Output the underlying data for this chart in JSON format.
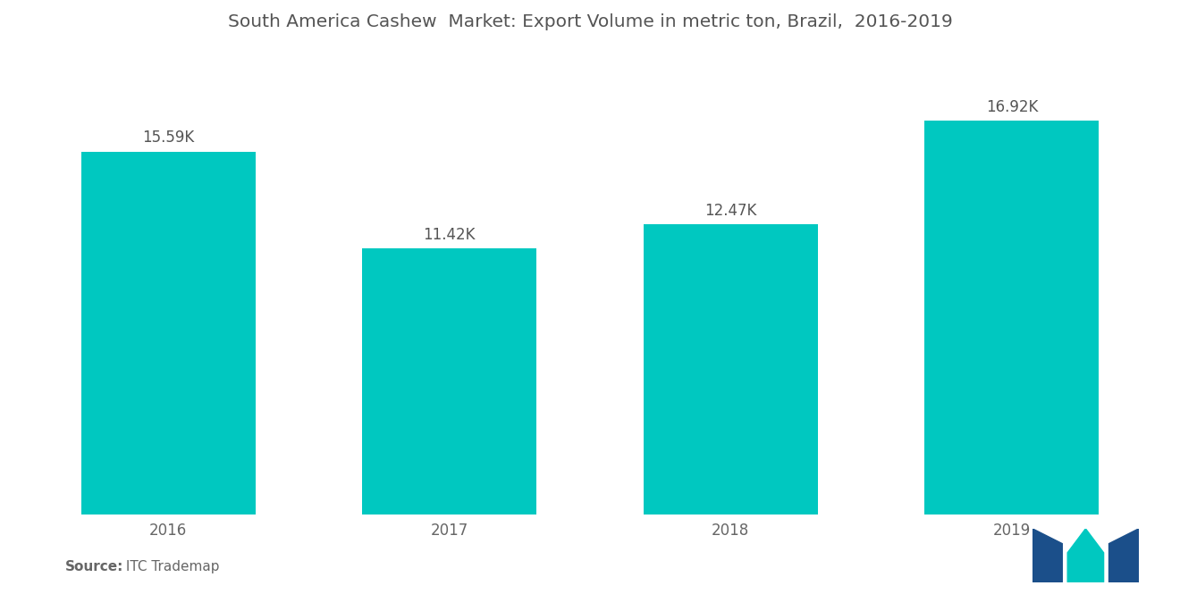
{
  "title": "South America Cashew  Market: Export Volume in metric ton, Brazil,  2016-2019",
  "categories": [
    "2016",
    "2017",
    "2018",
    "2019"
  ],
  "values": [
    15590,
    11420,
    12470,
    16920
  ],
  "labels": [
    "15.59K",
    "11.42K",
    "12.47K",
    "16.92K"
  ],
  "bar_color": "#00C8C0",
  "background_color": "#FFFFFF",
  "title_color": "#555555",
  "label_color": "#555555",
  "tick_color": "#666666",
  "source_bold": "Source:",
  "source_normal": " ITC Trademap",
  "ylim": [
    0,
    20000
  ],
  "bar_width": 0.62,
  "title_fontsize": 14.5,
  "label_fontsize": 12,
  "tick_fontsize": 12,
  "source_fontsize": 11,
  "logo_dark": "#1B4F8A",
  "logo_teal": "#00C8C0"
}
